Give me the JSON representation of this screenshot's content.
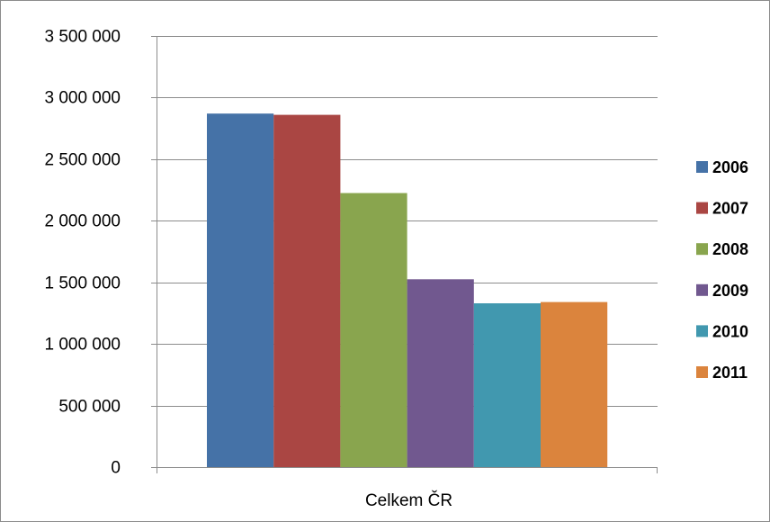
{
  "chart_data": {
    "type": "bar",
    "categories": [
      "Celkem ČR"
    ],
    "series": [
      {
        "name": "2006",
        "values": [
          2870000
        ],
        "color": "#4572A7"
      },
      {
        "name": "2007",
        "values": [
          2860000
        ],
        "color": "#AA4643"
      },
      {
        "name": "2008",
        "values": [
          2225000
        ],
        "color": "#89A54E"
      },
      {
        "name": "2009",
        "values": [
          1525000
        ],
        "color": "#71588F"
      },
      {
        "name": "2010",
        "values": [
          1330000
        ],
        "color": "#4198AF"
      },
      {
        "name": "2011",
        "values": [
          1340000
        ],
        "color": "#DB843D"
      }
    ],
    "ylim": [
      0,
      3500000
    ],
    "yticks": [
      0,
      500000,
      1000000,
      1500000,
      2000000,
      2500000,
      3000000,
      3500000
    ],
    "ytick_labels": [
      "0",
      "500 000",
      "1 000 000",
      "1 500 000",
      "2 000 000",
      "2 500 000",
      "3 000 000",
      "3 500 000"
    ],
    "title": "",
    "xlabel": "",
    "ylabel": "",
    "grid": true,
    "legend_position": "right",
    "gridline_color": "#8c8c8c",
    "axis_color": "#8c8c8c"
  }
}
